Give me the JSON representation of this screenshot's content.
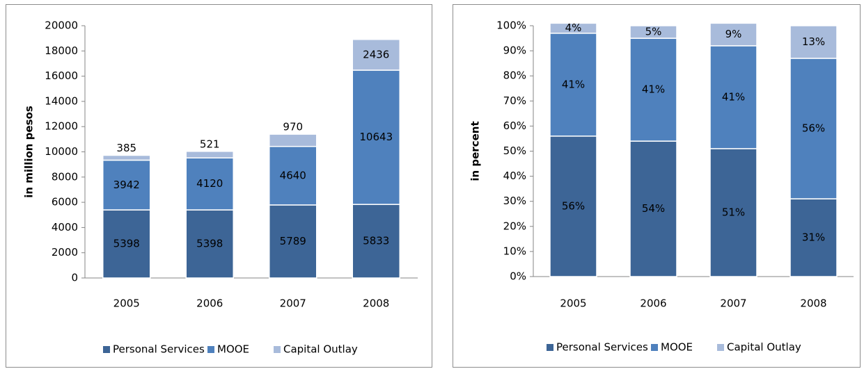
{
  "chart_data": [
    {
      "type": "bar",
      "stacked": true,
      "y_label": "in million pesos",
      "categories": [
        "2005",
        "2006",
        "2007",
        "2008"
      ],
      "ylim": [
        0,
        20000
      ],
      "yticks": [
        0,
        2000,
        4000,
        6000,
        8000,
        10000,
        12000,
        14000,
        16000,
        18000,
        20000
      ],
      "series": [
        {
          "name": "Personal Services",
          "color": "#3d6596",
          "values": [
            5398,
            5398,
            5789,
            5833
          ]
        },
        {
          "name": "MOOE",
          "color": "#4f81bd",
          "values": [
            3942,
            4120,
            4640,
            10643
          ]
        },
        {
          "name": "Capital Outlay",
          "color": "#a8bbdb",
          "values": [
            385,
            521,
            970,
            2436
          ]
        }
      ]
    },
    {
      "type": "bar",
      "stacked": true,
      "y_label": "in percent",
      "categories": [
        "2005",
        "2006",
        "2007",
        "2008"
      ],
      "ylim": [
        0,
        100
      ],
      "yticks": [
        {
          "value": 0,
          "label": "0%"
        },
        {
          "value": 10,
          "label": "10%"
        },
        {
          "value": 20,
          "label": "20%"
        },
        {
          "value": 30,
          "label": "30%"
        },
        {
          "value": 40,
          "label": "40%"
        },
        {
          "value": 50,
          "label": "50%"
        },
        {
          "value": 60,
          "label": "60%"
        },
        {
          "value": 70,
          "label": "70%"
        },
        {
          "value": 80,
          "label": "80%"
        },
        {
          "value": 90,
          "label": "90%"
        },
        {
          "value": 100,
          "label": "100%"
        }
      ],
      "series": [
        {
          "name": "Personal Services",
          "color": "#3d6596",
          "values": [
            56,
            54,
            51,
            31
          ],
          "value_labels": [
            "56%",
            "54%",
            "51%",
            "31%"
          ]
        },
        {
          "name": "MOOE",
          "color": "#4f81bd",
          "values": [
            41,
            41,
            41,
            56
          ],
          "value_labels": [
            "41%",
            "41%",
            "41%",
            "56%"
          ]
        },
        {
          "name": "Capital Outlay",
          "color": "#a8bbdb",
          "values": [
            4,
            5,
            9,
            13
          ],
          "value_labels": [
            "4%",
            "5%",
            "9%",
            "13%"
          ]
        }
      ]
    }
  ]
}
